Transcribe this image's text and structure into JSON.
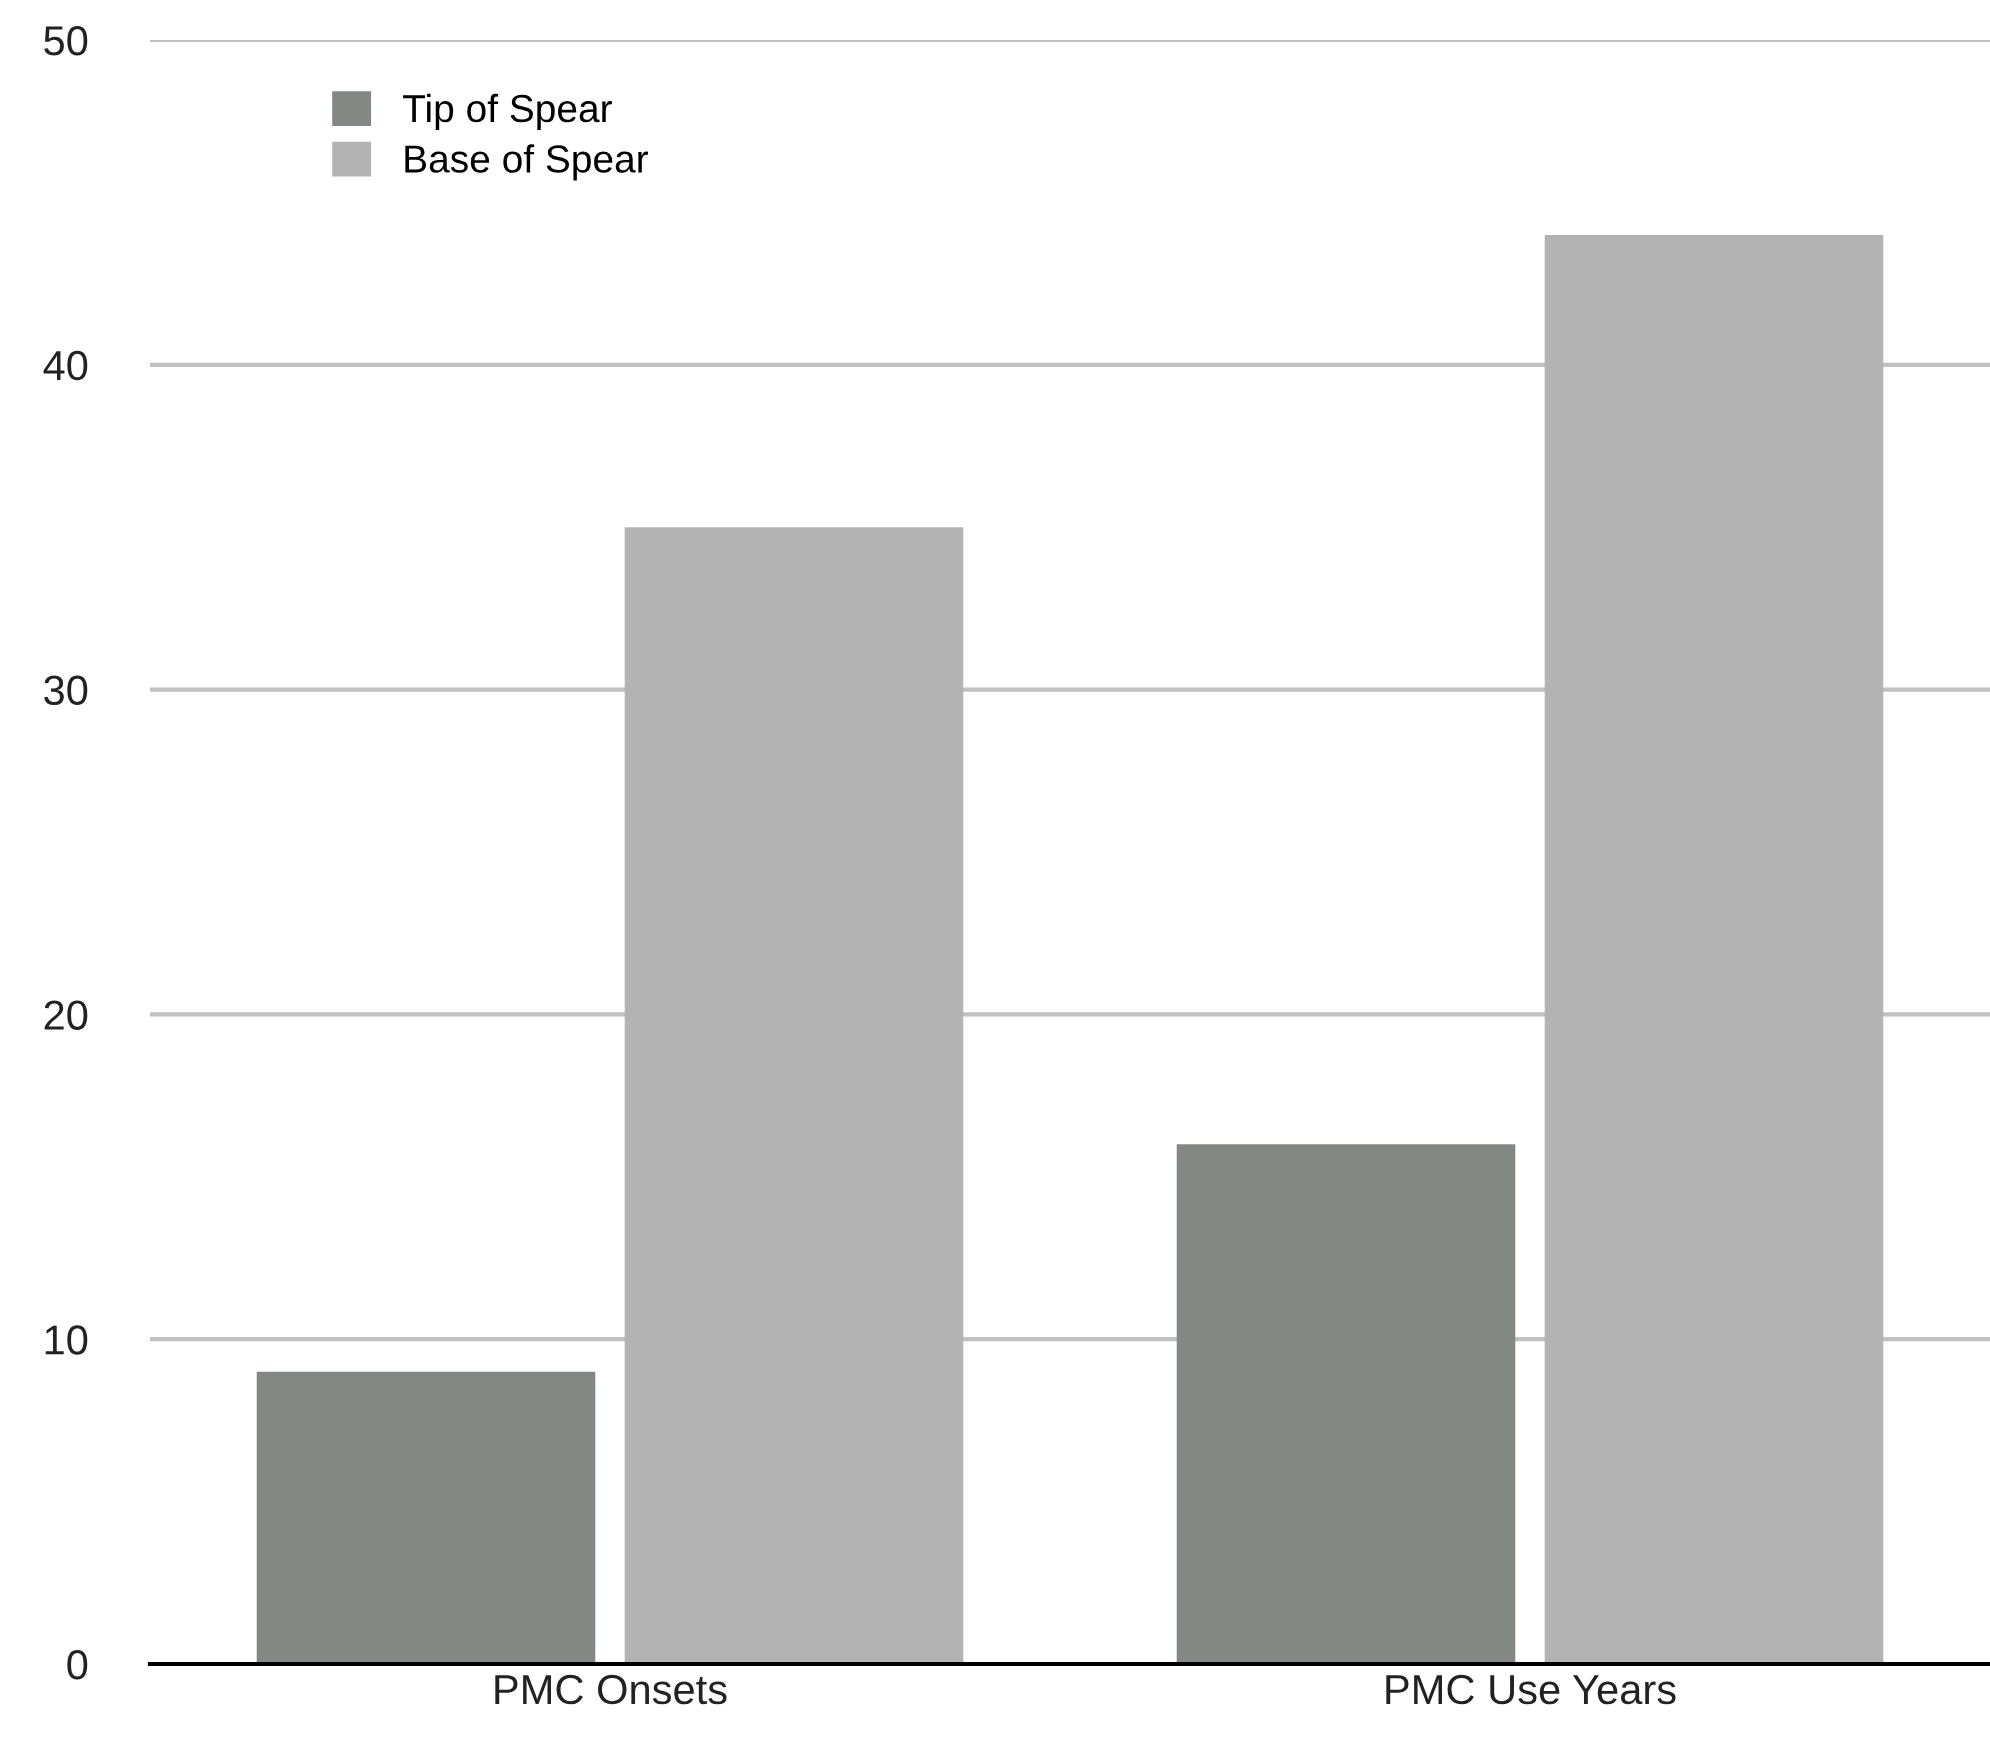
{
  "chart_data": {
    "type": "bar",
    "categories": [
      "PMC Onsets",
      "PMC Use Years"
    ],
    "series": [
      {
        "name": "Tip of Spear",
        "color": "#838885",
        "values": [
          9,
          16
        ]
      },
      {
        "name": "Base of Spear",
        "color": "#b3b3b3",
        "values": [
          35,
          44
        ]
      }
    ],
    "ylim": [
      0,
      50
    ],
    "yticks": [
      0,
      10,
      20,
      30,
      40,
      50
    ],
    "grid": "y",
    "legend": "top left"
  }
}
